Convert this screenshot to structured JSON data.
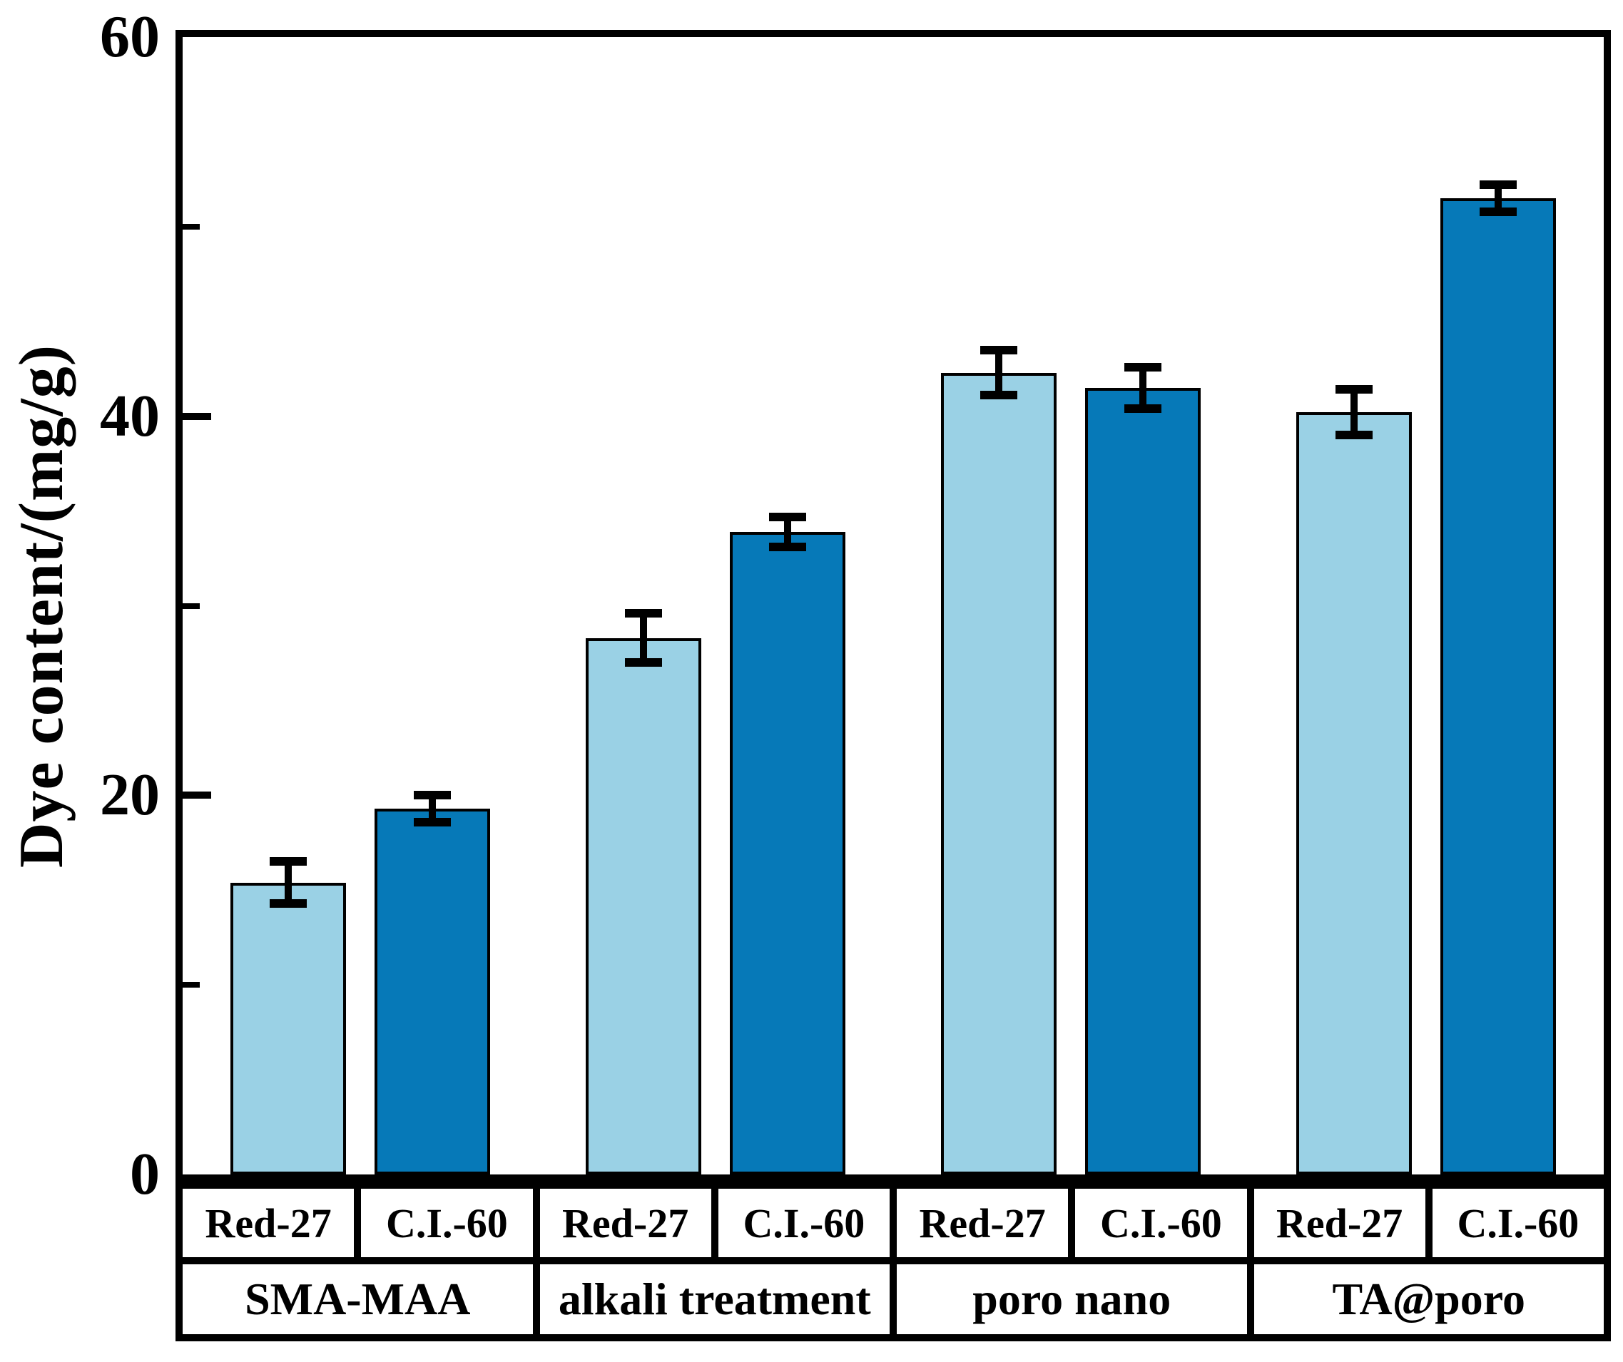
{
  "chart_data": {
    "type": "bar",
    "title": "",
    "ylabel": "Dye content/(mg/g)",
    "xlabel": "",
    "ylim": [
      0,
      60
    ],
    "yticks_major": [
      0,
      20,
      40,
      60
    ],
    "yticks_minor": [
      10,
      30,
      50
    ],
    "grid": false,
    "legend": "none (series identified by boxed x-axis cells)",
    "groups": [
      "SMA-MAA",
      "alkali treatment",
      "poro nano",
      "TA@poro"
    ],
    "bar_labels": [
      "Red-27",
      "C.I.-60"
    ],
    "series": [
      {
        "name": "Red-27",
        "color": "#9ad1e5",
        "values": [
          15.4,
          28.3,
          42.3,
          40.2
        ],
        "errors": [
          1.1,
          1.3,
          1.2,
          1.2
        ]
      },
      {
        "name": "C.I.-60",
        "color": "#0679b8",
        "values": [
          19.3,
          33.9,
          41.5,
          51.5
        ],
        "errors": [
          0.7,
          0.8,
          1.1,
          0.7
        ]
      }
    ],
    "colors": {
      "bar_light": "#9ad1e5",
      "bar_dark": "#0679b8",
      "axis": "#000000",
      "background": "#ffffff"
    }
  }
}
